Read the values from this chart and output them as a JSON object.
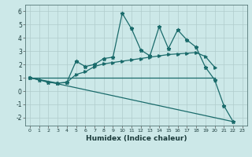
{
  "xlabel": "Humidex (Indice chaleur)",
  "bg_color": "#cce8e8",
  "grid_color": "#b0cccc",
  "line_color": "#1a6b6b",
  "xlim": [
    -0.5,
    23.5
  ],
  "ylim": [
    -2.6,
    6.5
  ],
  "xticks": [
    0,
    1,
    2,
    3,
    4,
    5,
    6,
    7,
    8,
    9,
    10,
    11,
    12,
    13,
    14,
    15,
    16,
    17,
    18,
    19,
    20,
    21,
    22,
    23
  ],
  "yticks": [
    -2,
    -1,
    0,
    1,
    2,
    3,
    4,
    5,
    6
  ],
  "line1_x": [
    0,
    1,
    2,
    3,
    4,
    5,
    6,
    7,
    8,
    9,
    10,
    11,
    12,
    13,
    14,
    15,
    16,
    17,
    18,
    19,
    20,
    21,
    22
  ],
  "line1_y": [
    1.0,
    0.85,
    0.65,
    0.6,
    0.65,
    2.25,
    1.85,
    2.0,
    2.45,
    2.55,
    5.85,
    4.7,
    3.1,
    2.65,
    4.85,
    3.2,
    4.6,
    3.85,
    3.3,
    1.8,
    0.85,
    -1.1,
    -2.3
  ],
  "line2_x": [
    0,
    3,
    4,
    5,
    6,
    7,
    8,
    9,
    10,
    11,
    12,
    13,
    14,
    15,
    16,
    17,
    18,
    19,
    20
  ],
  "line2_y": [
    1.0,
    0.6,
    0.65,
    1.25,
    1.45,
    1.85,
    2.05,
    2.15,
    2.25,
    2.35,
    2.45,
    2.55,
    2.65,
    2.75,
    2.8,
    2.85,
    2.9,
    2.6,
    1.8
  ],
  "line3_x": [
    0,
    20
  ],
  "line3_y": [
    1.0,
    1.0
  ],
  "line4_x": [
    0,
    22
  ],
  "line4_y": [
    1.0,
    -2.3
  ]
}
